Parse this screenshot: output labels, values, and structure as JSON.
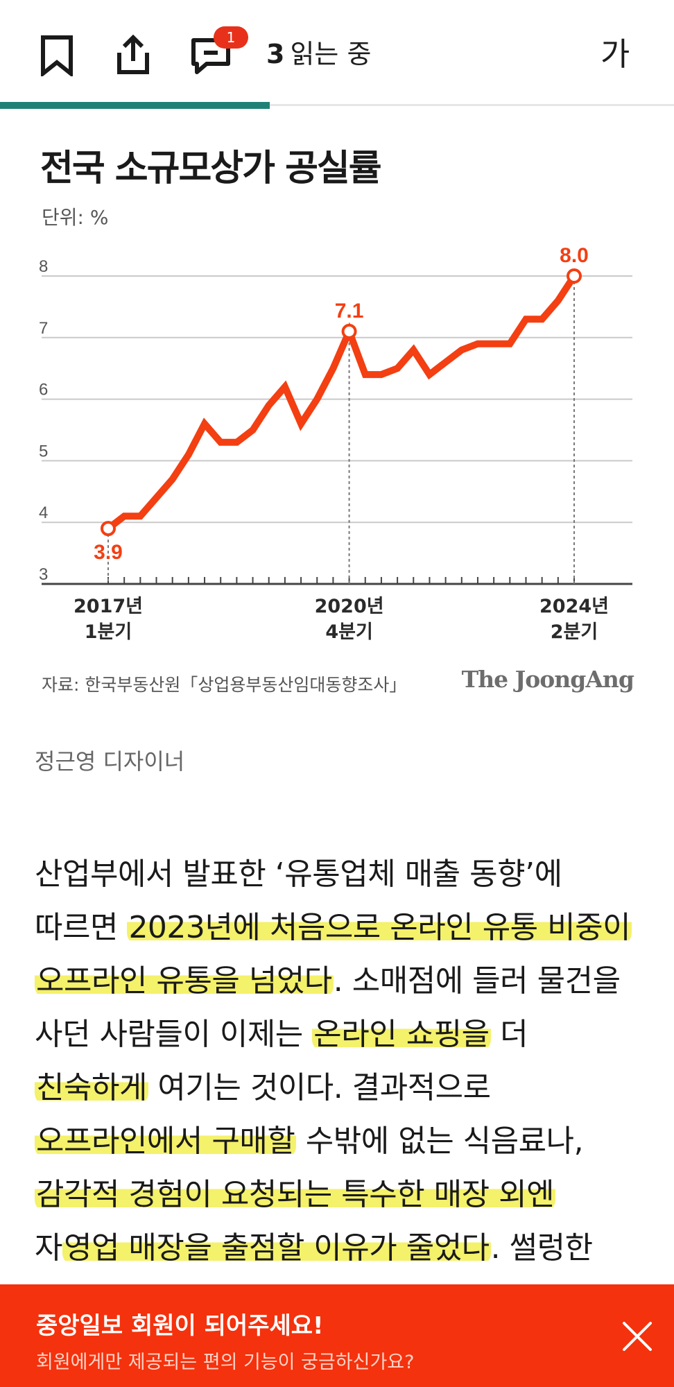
{
  "toolbar": {
    "icons": [
      "bookmark-icon",
      "share-icon",
      "comment-icon"
    ],
    "comment_badge": "1",
    "reading_count": "3",
    "reading_text": "읽는 중",
    "font_size_label": "가",
    "read_progress": 0.4
  },
  "chart_data": {
    "type": "line",
    "title": "전국 소규모상가 공실률",
    "unit": "단위: %",
    "ylim": [
      3,
      8
    ],
    "yticks": [
      "3",
      "4",
      "5",
      "6",
      "7",
      "8"
    ],
    "grid": true,
    "x": [
      "2017 Q1",
      "2017 Q2",
      "2017 Q3",
      "2017 Q4",
      "2018 Q1",
      "2018 Q2",
      "2018 Q3",
      "2018 Q4",
      "2019 Q1",
      "2019 Q2",
      "2019 Q3",
      "2019 Q4",
      "2020 Q1",
      "2020 Q2",
      "2020 Q3",
      "2020 Q4",
      "2021 Q1",
      "2021 Q2",
      "2021 Q3",
      "2021 Q4",
      "2022 Q1",
      "2022 Q2",
      "2022 Q3",
      "2022 Q4",
      "2023 Q1",
      "2023 Q2",
      "2023 Q3",
      "2023 Q4",
      "2024 Q1",
      "2024 Q2"
    ],
    "series": [
      {
        "values": [
          3.9,
          4.1,
          4.1,
          4.4,
          4.7,
          5.1,
          5.6,
          5.3,
          5.3,
          5.5,
          5.9,
          6.2,
          5.6,
          6.0,
          6.5,
          7.1,
          6.4,
          6.4,
          6.5,
          6.8,
          6.4,
          6.6,
          6.8,
          6.9,
          6.9,
          6.9,
          7.3,
          7.3,
          7.6,
          8.0
        ]
      }
    ],
    "xtick_labels": [
      {
        "index": 0,
        "line1": "2017년",
        "line2": "1분기"
      },
      {
        "index": 15,
        "line1": "2020년",
        "line2": "4분기"
      },
      {
        "index": 29,
        "line1": "2024년",
        "line2": "2분기"
      }
    ],
    "annotations": [
      {
        "index": 0,
        "label": "3.9",
        "position": "below"
      },
      {
        "index": 15,
        "label": "7.1",
        "position": "above"
      },
      {
        "index": 29,
        "label": "8.0",
        "position": "above"
      }
    ],
    "line_color": "#f33f12",
    "source": "자료: 한국부동산원「상업용부동산임대동향조사」",
    "brand": "The JoongAng"
  },
  "caption": "정근영 디자이너",
  "article_lines": [
    [
      {
        "t": "산업부에서 발표한 ‘유통업체 매출 동향’에",
        "hl": false
      }
    ],
    [
      {
        "t": "따르면 ",
        "hl": false
      },
      {
        "t": "2023년에 처음으로 온라인 유통 비중이",
        "hl": true
      }
    ],
    [
      {
        "t": "오프라인 유통을 넘었다",
        "hl": true
      },
      {
        "t": ". 소매점에 들러 물건을",
        "hl": false
      }
    ],
    [
      {
        "t": "사던 사람들이 이제는 ",
        "hl": false
      },
      {
        "t": "온라인 쇼핑을",
        "hl": true
      },
      {
        "t": " 더",
        "hl": false
      }
    ],
    [
      {
        "t": "친숙하게",
        "hl": true
      },
      {
        "t": " 여기는 것이다. 결과적으로",
        "hl": false
      }
    ],
    [
      {
        "t": "오프라인에서 구매할",
        "hl": true
      },
      {
        "t": " 수밖에 없는 식음료나,",
        "hl": false
      }
    ],
    [
      {
        "t": "감각적 경험이 요청되는 특수한 매장 외엔",
        "hl": true
      }
    ],
    [
      {
        "t": "자",
        "hl": false
      },
      {
        "t": "영업 매장을 출점할 이유가 줄었다",
        "hl": true
      },
      {
        "t": ". 썰렁한",
        "hl": false
      }
    ]
  ],
  "colors": {
    "highlight": "#f4f16b",
    "accent": "#1f8176",
    "banner": "#f4320d"
  },
  "banner": {
    "title": "중앙일보 회원이 되어주세요!",
    "subtitle": "회원에게만 제공되는 편의 기능이 궁금하신가요?",
    "close_icon": "close-icon"
  }
}
